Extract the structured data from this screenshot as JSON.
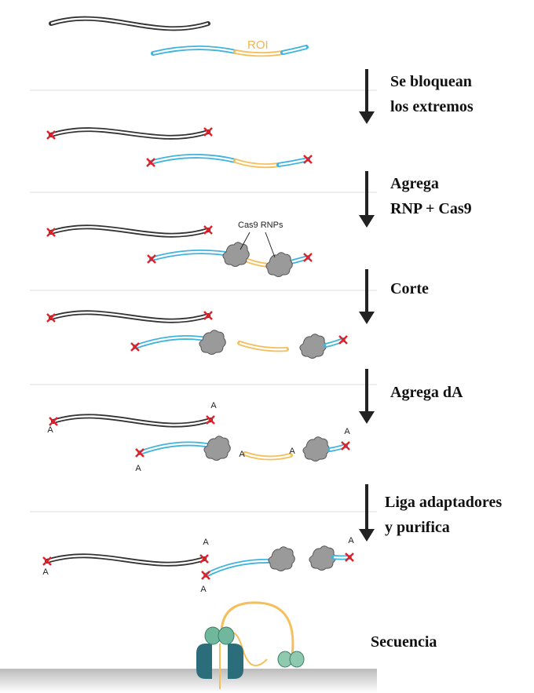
{
  "labels": {
    "roi": "ROI",
    "cas9": "Cas9 RNPs",
    "adenine": [
      "A",
      "A",
      "A",
      "A",
      "A",
      "A",
      "A",
      "A",
      "A",
      "A"
    ]
  },
  "steps": [
    [
      "Se bloquean",
      "los extremos"
    ],
    [
      "Agrega",
      "RNP + Cas9"
    ],
    [
      "Corte"
    ],
    [
      "Agrega dA"
    ],
    [
      "Liga adaptadores",
      "y purifica"
    ],
    [
      "Secuencia"
    ]
  ]
}
